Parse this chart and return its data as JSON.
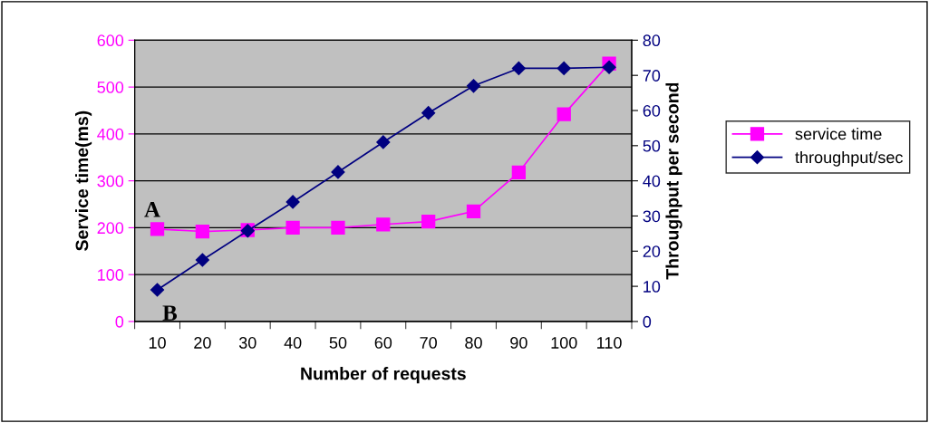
{
  "chart_data": {
    "type": "line",
    "xlabel": "Number of requests",
    "ylabel": "Service time(ms)",
    "y2label": "Throughput per second",
    "categories": [
      "10",
      "20",
      "30",
      "40",
      "50",
      "60",
      "70",
      "80",
      "90",
      "100",
      "110"
    ],
    "series": [
      {
        "name": "service time",
        "color": "#ff00ff",
        "marker": "square",
        "values": [
          197,
          192,
          195,
          200,
          200,
          207,
          213,
          235,
          318,
          442,
          550
        ]
      },
      {
        "name": "throughput/sec",
        "color": "#000080",
        "marker": "diamond",
        "axis": "y2",
        "values": [
          9,
          17.5,
          25.8,
          34,
          42.5,
          51,
          59.3,
          67,
          72,
          72,
          72.3
        ]
      }
    ],
    "ylim": [
      0,
      600
    ],
    "yticks": [
      0,
      100,
      200,
      300,
      400,
      500,
      600
    ],
    "y2lim": [
      0,
      80
    ],
    "y2ticks": [
      0,
      10,
      20,
      30,
      40,
      50,
      60,
      70,
      80
    ],
    "grid": "y",
    "legend": "right",
    "annotations": [
      {
        "text": "A",
        "x": "10",
        "y": 197
      },
      {
        "text": "B",
        "x": "10",
        "y": 67.5
      }
    ]
  }
}
